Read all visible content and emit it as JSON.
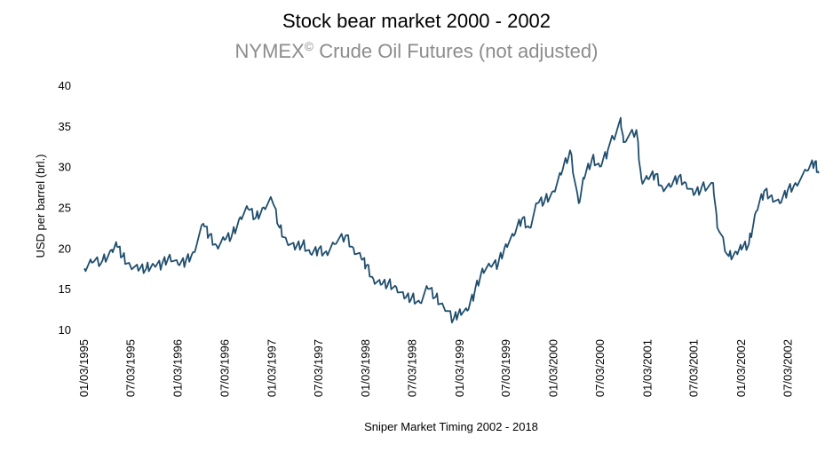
{
  "chart_data": {
    "type": "line",
    "title": "Stock bear market 2000 - 2002",
    "subtitle_main": "NYMEX",
    "subtitle_symbol": "©",
    "subtitle_rest": " Crude Oil Futures (not adjusted)",
    "xlabel": "Sniper Market Timing 2002 - 2018",
    "ylabel": "USD per barrel (brl.)",
    "ylim": [
      10,
      40
    ],
    "yticks": [
      "10",
      "15",
      "20",
      "25",
      "30",
      "35",
      "40"
    ],
    "xticks": [
      "01/03/1995",
      "07/03/1995",
      "01/03/1996",
      "07/03/1996",
      "01/03/1997",
      "07/03/1997",
      "01/03/1998",
      "07/03/1998",
      "01/03/1999",
      "07/03/1999",
      "01/03/2000",
      "07/03/2000",
      "01/03/2001",
      "07/03/2001",
      "01/03/2002",
      "07/03/2002"
    ],
    "xlim": [
      "1995-01-03",
      "2002-10-31"
    ],
    "grid": false,
    "line_color": "#1f4e6e",
    "series": [
      {
        "x": [
          "1995-01-03",
          "1995-02-01",
          "1995-03-15",
          "1995-04-20",
          "1995-05-10",
          "1995-06-01",
          "1995-07-01",
          "1995-08-01",
          "1995-09-01",
          "1995-10-01",
          "1995-11-01",
          "1995-12-01",
          "1996-01-03",
          "1996-02-01",
          "1996-03-01",
          "1996-04-10",
          "1996-05-01",
          "1996-06-01",
          "1996-07-01",
          "1996-08-01",
          "1996-09-01",
          "1996-10-01",
          "1996-11-01",
          "1996-12-01",
          "1997-01-03",
          "1997-02-01",
          "1997-03-01",
          "1997-04-01",
          "1997-05-01",
          "1997-06-01",
          "1997-07-01",
          "1997-08-01",
          "1997-09-01",
          "1997-10-15",
          "1997-11-15",
          "1997-12-15",
          "1998-01-03",
          "1998-02-01",
          "1998-03-01",
          "1998-04-01",
          "1998-05-01",
          "1998-06-01",
          "1998-07-01",
          "1998-08-01",
          "1998-09-01",
          "1998-10-01",
          "1998-11-01",
          "1998-12-10",
          "1999-01-03",
          "1999-02-01",
          "1999-03-01",
          "1999-04-01",
          "1999-05-01",
          "1999-06-01",
          "1999-07-01",
          "1999-08-01",
          "1999-09-01",
          "1999-10-01",
          "1999-11-01",
          "1999-12-01",
          "2000-01-03",
          "2000-02-01",
          "2000-03-07",
          "2000-04-10",
          "2000-05-01",
          "2000-06-01",
          "2000-07-01",
          "2000-08-01",
          "2000-09-20",
          "2000-10-01",
          "2000-11-20",
          "2000-12-10",
          "2001-01-03",
          "2001-02-01",
          "2001-03-01",
          "2001-04-01",
          "2001-05-01",
          "2001-06-01",
          "2001-07-01",
          "2001-08-01",
          "2001-09-15",
          "2001-10-01",
          "2001-11-15",
          "2001-12-15",
          "2002-01-03",
          "2002-02-01",
          "2002-03-01",
          "2002-04-01",
          "2002-05-01",
          "2002-06-01",
          "2002-07-01",
          "2002-08-01",
          "2002-09-15",
          "2002-10-15",
          "2002-10-31"
        ],
        "values": [
          17.5,
          18.2,
          18.5,
          19.8,
          20.2,
          19.0,
          17.8,
          17.2,
          17.5,
          17.9,
          18.0,
          19.2,
          18.0,
          18.3,
          19.5,
          23.0,
          21.5,
          20.3,
          21.0,
          21.8,
          23.8,
          24.8,
          23.8,
          25.0,
          25.8,
          22.5,
          20.8,
          19.8,
          20.5,
          19.3,
          19.8,
          19.6,
          20.5,
          21.5,
          20.0,
          18.8,
          17.8,
          16.2,
          15.5,
          15.8,
          15.2,
          13.8,
          14.0,
          13.3,
          15.0,
          14.0,
          12.8,
          11.3,
          12.5,
          12.3,
          14.5,
          17.5,
          17.8,
          18.0,
          20.5,
          21.5,
          23.5,
          22.5,
          25.5,
          26.0,
          27.0,
          29.0,
          32.0,
          25.5,
          28.5,
          31.0,
          30.0,
          32.0,
          36.0,
          33.0,
          34.5,
          28.5,
          28.5,
          29.0,
          27.5,
          27.5,
          28.5,
          28.0,
          26.5,
          27.5,
          28.0,
          22.5,
          19.0,
          19.5,
          19.8,
          20.5,
          24.5,
          27.0,
          26.5,
          25.5,
          27.0,
          28.0,
          29.5,
          30.5,
          29.2
        ]
      }
    ]
  }
}
